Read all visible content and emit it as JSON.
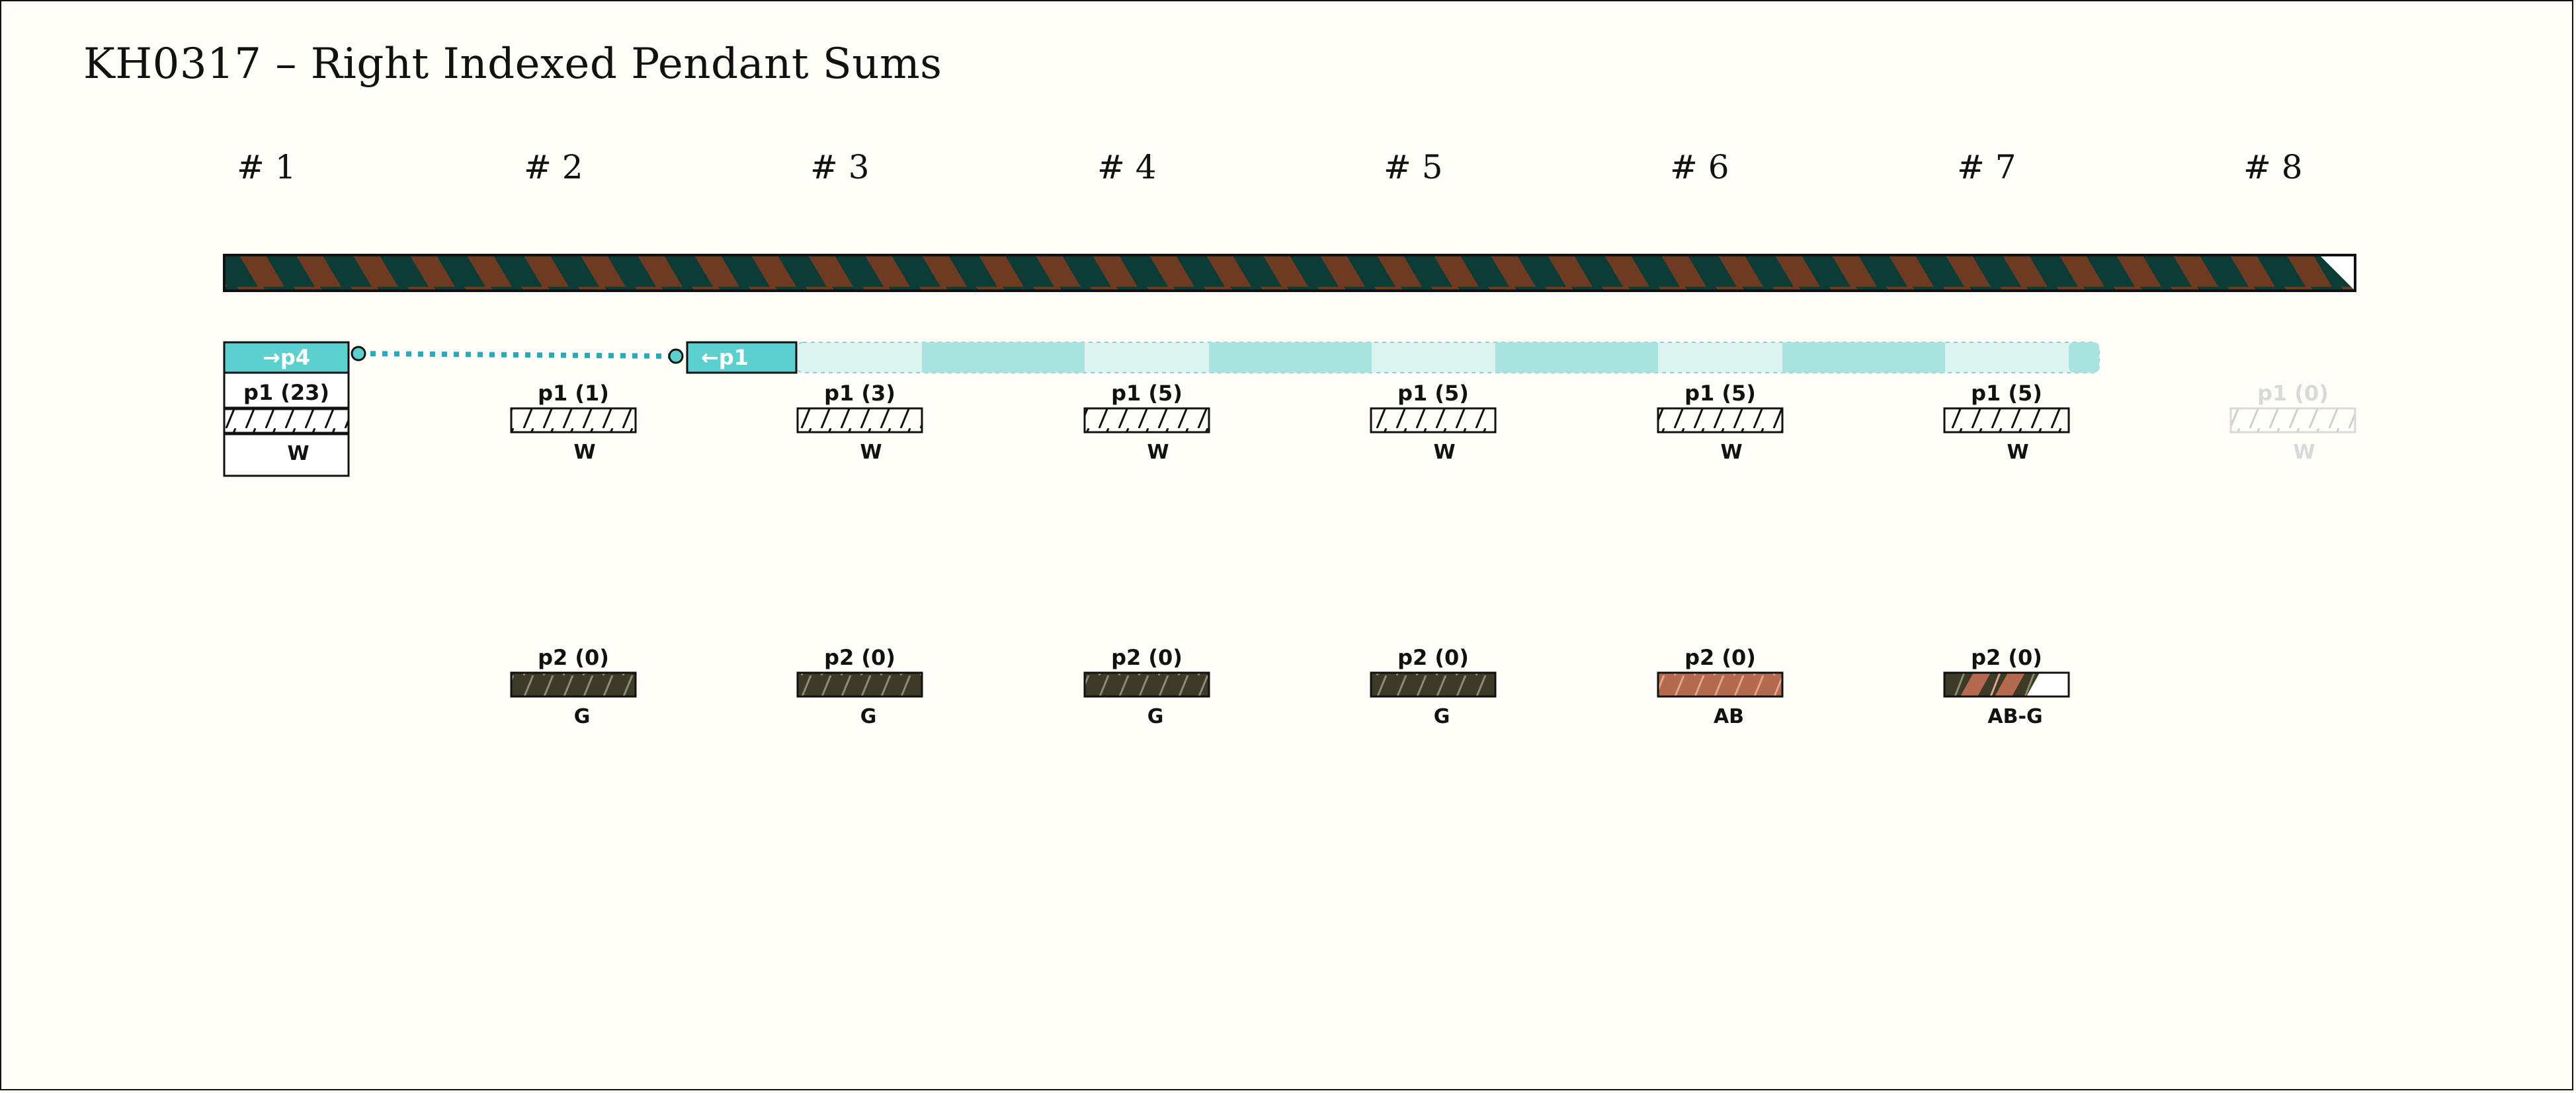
{
  "title": "KH0317 – Right Indexed Pendant Sums",
  "columns": [
    {
      "label": "# 1"
    },
    {
      "label": "# 2"
    },
    {
      "label": "# 3"
    },
    {
      "label": "# 4"
    },
    {
      "label": "# 5"
    },
    {
      "label": "# 6"
    },
    {
      "label": "# 7"
    },
    {
      "label": "# 8"
    }
  ],
  "index_link": {
    "from_label": "→p4",
    "to_label": "←p1"
  },
  "row1": [
    {
      "label": "p1 (23)",
      "color_label": "W",
      "faded": false
    },
    {
      "label": "p1 (1)",
      "color_label": "W",
      "faded": false
    },
    {
      "label": "p1 (3)",
      "color_label": "W",
      "faded": false
    },
    {
      "label": "p1 (5)",
      "color_label": "W",
      "faded": false
    },
    {
      "label": "p1 (5)",
      "color_label": "W",
      "faded": false
    },
    {
      "label": "p1 (5)",
      "color_label": "W",
      "faded": false
    },
    {
      "label": "p1 (5)",
      "color_label": "W",
      "faded": false
    },
    {
      "label": "p1 (0)",
      "color_label": "W",
      "faded": true
    }
  ],
  "row2": [
    {
      "col": 1,
      "label": "p2 (0)",
      "color_label": "G",
      "fill": "dark-olive"
    },
    {
      "col": 2,
      "label": "p2 (0)",
      "color_label": "G",
      "fill": "dark-olive"
    },
    {
      "col": 3,
      "label": "p2 (0)",
      "color_label": "G",
      "fill": "dark-olive"
    },
    {
      "col": 4,
      "label": "p2 (0)",
      "color_label": "G",
      "fill": "dark-olive"
    },
    {
      "col": 5,
      "label": "p2 (0)",
      "color_label": "AB",
      "fill": "brown"
    },
    {
      "col": 6,
      "label": "p2 (0)",
      "color_label": "AB-G",
      "fill": "mixed"
    }
  ],
  "colors": {
    "background": "#fffdf7",
    "cord_dark": "#0d3b36",
    "cord_brown": "#6e3a22",
    "cyan": "#5ccfcf",
    "cyan_light": "#a8e3e0",
    "cyan_pale": "#dcf3ef",
    "olive": "#3d3b28",
    "brown": "#b46a4e",
    "faded": "#d9d9d9"
  }
}
